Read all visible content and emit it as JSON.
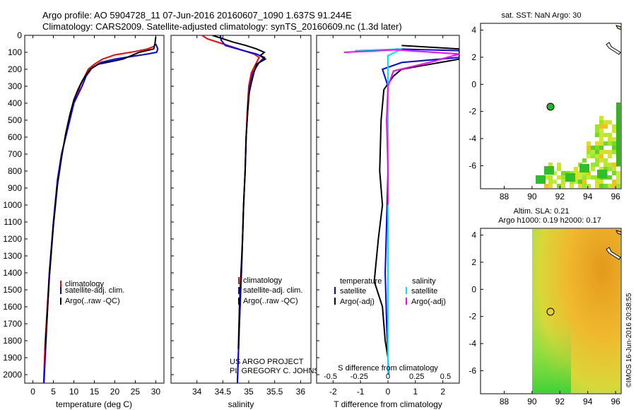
{
  "header": {
    "line1": "Argo profile: AO 5904728_11 07-Jun-2016 20160607_1090 1.637S 91.244E",
    "line2": "Climatology: CARS2009. Satellite-adjusted climatology: synTS_20160609.nc (1.3d later)"
  },
  "colors": {
    "clim": "#ff0000",
    "sat": "#0000ff",
    "argo": "#000000",
    "sal_sat": "#00e5ee",
    "sal_argo": "#ff00ff"
  },
  "chart_data": [
    {
      "type": "line",
      "id": "temperature",
      "xlabel": "temperature (deg C)",
      "ylabel": "",
      "xlim": [
        -2,
        32
      ],
      "ylim": [
        2050,
        0
      ],
      "xticks": [
        "0",
        "5",
        "10",
        "15",
        "20",
        "25",
        "30"
      ],
      "xtick_values": [
        0,
        5,
        10,
        15,
        20,
        25,
        30
      ],
      "yticks": [
        "0",
        "100",
        "200",
        "300",
        "400",
        "500",
        "600",
        "700",
        "800",
        "900",
        "1000",
        "1100",
        "1200",
        "1300",
        "1400",
        "1500",
        "1600",
        "1700",
        "1800",
        "1900",
        "2000"
      ],
      "ytick_values": [
        0,
        100,
        200,
        300,
        400,
        500,
        600,
        700,
        800,
        900,
        1000,
        1100,
        1200,
        1300,
        1400,
        1500,
        1600,
        1700,
        1800,
        1900,
        2000
      ],
      "legend": [
        "climatology",
        "satellite-adj. clim.",
        "Argo(..raw -QC)"
      ],
      "series": [
        {
          "name": "climatology",
          "color": "#ff0000",
          "x": [
            29.8,
            29.6,
            28,
            25,
            20,
            17,
            15,
            13.5,
            12.5,
            11.5,
            10.8,
            10,
            9,
            8,
            7,
            6,
            5,
            4,
            3,
            2.6
          ],
          "y": [
            50,
            65,
            80,
            95,
            115,
            140,
            170,
            200,
            250,
            300,
            350,
            400,
            500,
            600,
            700,
            850,
            1100,
            1400,
            1800,
            2050
          ]
        },
        {
          "name": "satellite-adj. clim.",
          "color": "#0000ff",
          "x": [
            30,
            30.5,
            30.2,
            28,
            24,
            20,
            16.5,
            14.5,
            13,
            12,
            11,
            10,
            9,
            8,
            7,
            6,
            5,
            4,
            3.2,
            2.7
          ],
          "y": [
            50,
            80,
            100,
            110,
            125,
            140,
            160,
            190,
            240,
            300,
            350,
            400,
            500,
            600,
            700,
            850,
            1100,
            1400,
            1800,
            2050
          ]
        },
        {
          "name": "Argo(..raw -QC)",
          "color": "#000000",
          "x": [
            30,
            29.8,
            29.5,
            26,
            24,
            22,
            20,
            18,
            16,
            14,
            13,
            12,
            11,
            10,
            9,
            8,
            7,
            6,
            5,
            4,
            3
          ],
          "y": [
            10,
            50,
            80,
            100,
            120,
            140,
            150,
            160,
            170,
            200,
            230,
            270,
            320,
            380,
            470,
            580,
            720,
            880,
            1120,
            1430,
            1850
          ]
        }
      ]
    },
    {
      "type": "line",
      "id": "salinity",
      "xlabel": "salinity",
      "xlim": [
        33.5,
        36.2
      ],
      "ylim": [
        2050,
        0
      ],
      "xticks": [
        "34",
        "34.5",
        "35",
        "35.5",
        "36"
      ],
      "xtick_values": [
        34,
        34.5,
        35,
        35.5,
        36
      ],
      "legend": [
        "climatology",
        "satellite-adj. clim.",
        "Argo(..raw -QC)"
      ],
      "series": [
        {
          "name": "climatology",
          "color": "#ff0000",
          "x": [
            34.1,
            34.2,
            34.5,
            34.9,
            35.1,
            35.2,
            35.15,
            35.05,
            35,
            34.97,
            34.95,
            34.93,
            34.9,
            34.87,
            34.82,
            34.78
          ],
          "y": [
            0,
            20,
            50,
            90,
            110,
            130,
            160,
            220,
            300,
            450,
            600,
            800,
            1000,
            1300,
            1700,
            2050
          ]
        },
        {
          "name": "satellite-adj. clim.",
          "color": "#0000ff",
          "x": [
            34.45,
            34.47,
            34.55,
            34.9,
            35.15,
            35.3,
            35.2,
            35.08,
            35.02,
            34.98,
            34.95,
            34.93,
            34.9,
            34.87,
            34.82,
            34.78
          ],
          "y": [
            0,
            30,
            60,
            90,
            110,
            130,
            160,
            220,
            300,
            450,
            600,
            800,
            1000,
            1300,
            1700,
            2050
          ]
        },
        {
          "name": "Argo(..raw -QC)",
          "color": "#000000",
          "x": [
            34.3,
            34.5,
            34.7,
            34.95,
            35.15,
            35.3,
            35.22,
            35.32,
            35.15,
            35.1,
            35.05,
            35.0,
            34.98,
            34.95,
            34.93,
            34.9,
            34.88,
            34.85,
            34.82,
            34.8
          ],
          "y": [
            0,
            20,
            40,
            60,
            80,
            100,
            120,
            140,
            170,
            220,
            280,
            350,
            450,
            600,
            800,
            1000,
            1200,
            1400,
            1600,
            1850
          ]
        }
      ]
    },
    {
      "type": "line",
      "id": "differences",
      "xlabel": "T difference from climatology",
      "xlabel_top": "S difference from climatology",
      "xlim": [
        -2.6,
        2.6
      ],
      "ylim": [
        2050,
        0
      ],
      "xticks": [
        "-2",
        "-1",
        "0",
        "1",
        "2"
      ],
      "xtick_values": [
        -2,
        -1,
        0,
        1,
        2
      ],
      "sticks": [
        "-0.5",
        "-0.25",
        "0",
        "0.25",
        "0.5"
      ],
      "stick_values": [
        -0.5,
        -0.25,
        0,
        0.25,
        0.5
      ],
      "legend_titles": [
        "temperature",
        "salinity"
      ],
      "legend": [
        "satellite",
        "Argo(-adj)",
        "satellite",
        "Argo(-adj)"
      ],
      "series": [
        {
          "name": "T satellite",
          "color": "#0000ff",
          "x": [
            0.3,
            2.6,
            2.6,
            0.5,
            -0.2,
            0,
            0,
            0,
            -0.05,
            -0.1,
            -0.05,
            0,
            0.02
          ],
          "y": [
            80,
            90,
            130,
            160,
            200,
            300,
            500,
            800,
            1100,
            1400,
            1700,
            1900,
            2000
          ]
        },
        {
          "name": "T Argo(-adj)",
          "color": "#000000",
          "x": [
            0.5,
            2.6,
            2.6,
            1.2,
            0.5,
            0.2,
            -0.15,
            -0.25,
            -0.3,
            -0.2,
            -0.35,
            -0.5,
            -0.2,
            -0.1,
            0
          ],
          "y": [
            60,
            80,
            140,
            180,
            200,
            240,
            320,
            500,
            800,
            1000,
            1200,
            1450,
            1600,
            1800,
            1900
          ]
        },
        {
          "name": "S satellite",
          "color": "#00e5ee",
          "x": [
            -1.2,
            0.5,
            0,
            0,
            0,
            0,
            0,
            0
          ],
          "y": [
            90,
            80,
            120,
            200,
            500,
            900,
            1500,
            2000
          ]
        },
        {
          "name": "S Argo(-adj)",
          "color": "#ff00ff",
          "x": [
            -1.6,
            0.3,
            2.6,
            1.5,
            0.2,
            0,
            -0.05,
            0,
            0
          ],
          "y": [
            100,
            85,
            110,
            160,
            210,
            300,
            500,
            800,
            1000
          ]
        }
      ]
    }
  ],
  "map_top": {
    "title": "sat. SST: NaN Argo: 30",
    "xticks": [
      "88",
      "90",
      "92",
      "94",
      "96"
    ],
    "yticks": [
      "4",
      "2",
      "0",
      "-2",
      "-4",
      "-6"
    ]
  },
  "map_bottom": {
    "title1": "Altim. SLA: 0.21",
    "title2": "Argo h1000: 0.19 h2000: 0.17",
    "xticks": [
      "88",
      "90",
      "92",
      "94",
      "96"
    ],
    "yticks": [
      "4",
      "2",
      "0",
      "-2",
      "-4",
      "-6"
    ]
  },
  "credit": {
    "line1": "US ARGO PROJECT",
    "line2": "PI: GREGORY C. JOHNSON"
  },
  "side_stamp": "©IMOS 16-Jun-2016 20:38:55"
}
